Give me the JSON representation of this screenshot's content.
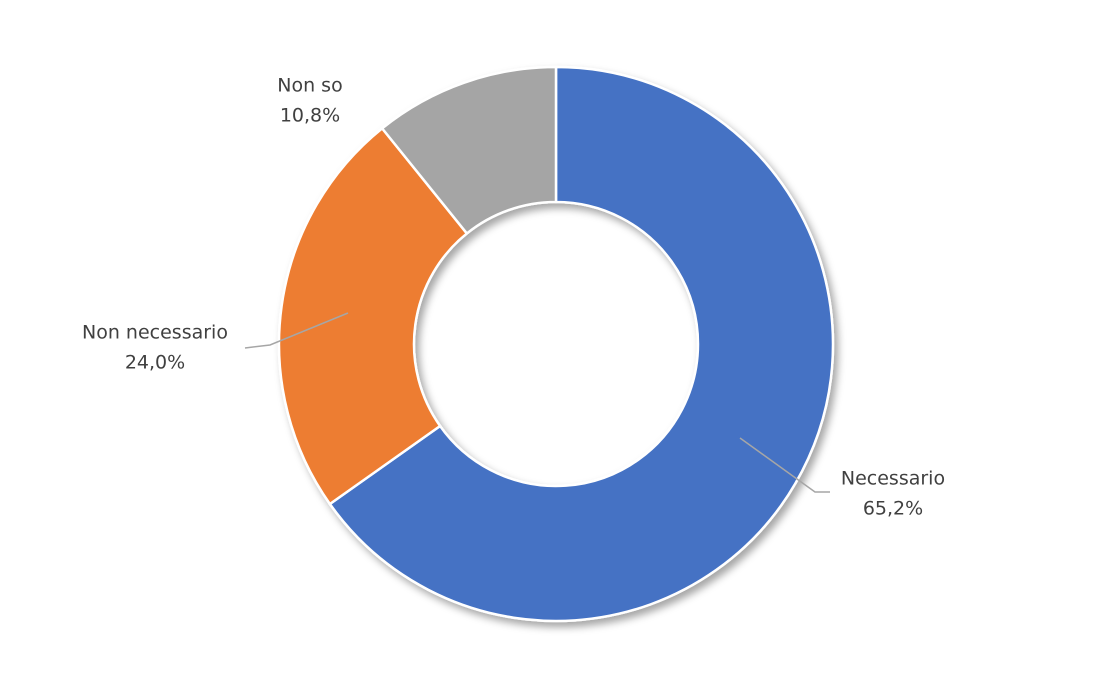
{
  "chart_data": {
    "type": "donut",
    "categories": [
      "Necessario",
      "Non necessario",
      "Non so"
    ],
    "values": [
      65.2,
      24.0,
      10.8
    ],
    "value_labels": [
      "65,2%",
      "24,0%",
      "10,8%"
    ],
    "colors": [
      "#4472c4",
      "#ed7d31",
      "#a5a5a5"
    ]
  }
}
